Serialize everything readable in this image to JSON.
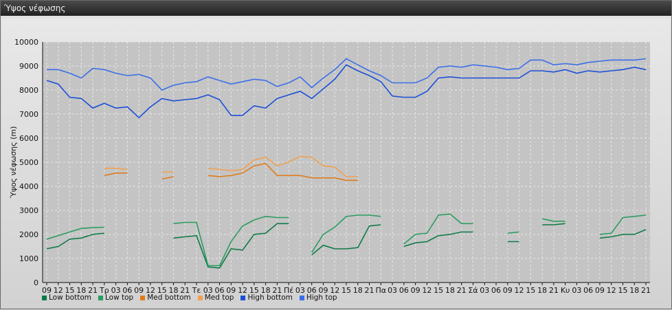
{
  "window": {
    "title": "Ύψος νέφωσης"
  },
  "chart_data": {
    "type": "line",
    "ylabel": "Ύψος νέφωσης (m)",
    "xlabel": "",
    "ylim": [
      0,
      10000
    ],
    "yticks": [
      0,
      1000,
      2000,
      3000,
      4000,
      5000,
      6000,
      7000,
      8000,
      9000,
      10000
    ],
    "grid": true,
    "legend_position": "bottom-left",
    "categories": [
      "09",
      "12",
      "15",
      "18",
      "21",
      "Τρ",
      "03",
      "06",
      "09",
      "12",
      "15",
      "18",
      "21",
      "Τε",
      "03",
      "06",
      "09",
      "12",
      "15",
      "18",
      "21",
      "Πέ",
      "03",
      "06",
      "09",
      "12",
      "15",
      "18",
      "21",
      "Πα",
      "03",
      "06",
      "09",
      "12",
      "15",
      "18",
      "21",
      "Σά",
      "03",
      "06",
      "09",
      "12",
      "15",
      "18",
      "21",
      "Κυ",
      "03",
      "06",
      "09",
      "12",
      "15",
      "18",
      "21"
    ],
    "series": [
      {
        "name": "Low bottom",
        "color": "#0d7a45",
        "values": [
          1400,
          1500,
          1800,
          1850,
          2000,
          2050,
          null,
          null,
          null,
          null,
          null,
          1850,
          1900,
          1950,
          650,
          600,
          1400,
          1350,
          2000,
          2050,
          2450,
          2450,
          null,
          1150,
          1550,
          1400,
          1400,
          1450,
          2350,
          2400,
          null,
          1500,
          1650,
          1700,
          1950,
          2000,
          2100,
          2100,
          null,
          null,
          1700,
          1700,
          null,
          2400,
          2400,
          2450,
          null,
          null,
          1850,
          1900,
          2000,
          2000,
          2200
        ]
      },
      {
        "name": "Low top",
        "color": "#2a9c60",
        "values": [
          1800,
          1950,
          2100,
          2250,
          2280,
          2300,
          null,
          null,
          null,
          null,
          null,
          2450,
          2500,
          2500,
          700,
          700,
          1700,
          2350,
          2600,
          2750,
          2700,
          2700,
          null,
          1250,
          2000,
          2300,
          2750,
          2800,
          2800,
          2750,
          null,
          1600,
          2000,
          2050,
          2800,
          2850,
          2450,
          2450,
          null,
          null,
          2050,
          2100,
          null,
          2650,
          2550,
          2550,
          null,
          null,
          2000,
          2050,
          2700,
          2750,
          2800
        ]
      },
      {
        "name": "Med bottom",
        "color": "#e07b1a",
        "values": [
          null,
          null,
          null,
          null,
          null,
          4450,
          4550,
          4550,
          null,
          null,
          4300,
          4400,
          null,
          null,
          4450,
          4400,
          4450,
          4550,
          4850,
          4950,
          4450,
          4450,
          4450,
          4350,
          4350,
          4350,
          4250,
          4250,
          null,
          null,
          null,
          null,
          null,
          null,
          null,
          null,
          null,
          null,
          null,
          null,
          null,
          null,
          null,
          null,
          null,
          null,
          null,
          null,
          null,
          null,
          null,
          null,
          null
        ]
      },
      {
        "name": "Med top",
        "color": "#f0a050",
        "values": [
          null,
          null,
          null,
          null,
          null,
          4750,
          4750,
          4700,
          null,
          null,
          4600,
          4600,
          null,
          null,
          4750,
          4700,
          4650,
          4700,
          5100,
          5200,
          4850,
          5000,
          5250,
          5200,
          4850,
          4800,
          4400,
          4400,
          null,
          null,
          null,
          null,
          null,
          null,
          null,
          null,
          null,
          null,
          null,
          null,
          null,
          null,
          null,
          null,
          null,
          null,
          null,
          null,
          null,
          null,
          null,
          null,
          null
        ]
      },
      {
        "name": "High bottom",
        "color": "#1a4fd6",
        "values": [
          8400,
          8250,
          7700,
          7650,
          7250,
          7450,
          7250,
          7300,
          6850,
          7300,
          7650,
          7550,
          7600,
          7650,
          7800,
          7600,
          6950,
          6950,
          7350,
          7250,
          7650,
          7800,
          7950,
          7650,
          8050,
          8450,
          9050,
          8800,
          8600,
          8350,
          7750,
          7700,
          7700,
          7950,
          8500,
          8550,
          8500,
          8500,
          8500,
          8500,
          8500,
          8500,
          8800,
          8800,
          8750,
          8850,
          8700,
          8800,
          8750,
          8800,
          8850,
          8950,
          8850
        ]
      },
      {
        "name": "High top",
        "color": "#3a6ee8",
        "values": [
          8850,
          8850,
          8700,
          8500,
          8900,
          8850,
          8700,
          8600,
          8650,
          8500,
          8000,
          8200,
          8300,
          8350,
          8550,
          8400,
          8250,
          8350,
          8450,
          8400,
          8150,
          8300,
          8550,
          8100,
          8500,
          8850,
          9300,
          9050,
          8800,
          8600,
          8300,
          8300,
          8300,
          8500,
          8950,
          9000,
          8950,
          9050,
          9000,
          8950,
          8850,
          8900,
          9250,
          9250,
          9050,
          9100,
          9050,
          9150,
          9200,
          9250,
          9250,
          9250,
          9300
        ]
      }
    ]
  }
}
